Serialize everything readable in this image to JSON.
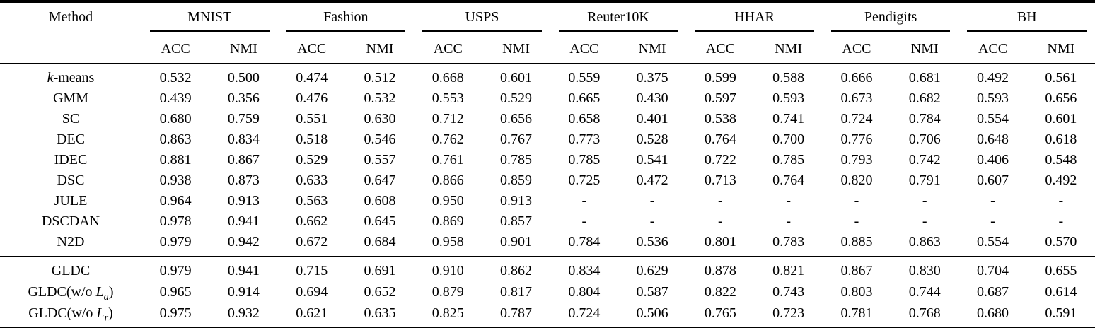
{
  "table": {
    "method_header": "Method",
    "metrics": [
      "ACC",
      "NMI"
    ],
    "datasets": [
      "MNIST",
      "Fashion",
      "USPS",
      "Reuter10K",
      "HHAR",
      "Pendigits",
      "BH"
    ],
    "groups": [
      {
        "rows": [
          {
            "method": [
              {
                "text": "k",
                "italic": true
              },
              {
                "text": "-means"
              }
            ],
            "values": [
              "0.532",
              "0.500",
              "0.474",
              "0.512",
              "0.668",
              "0.601",
              "0.559",
              "0.375",
              "0.599",
              "0.588",
              "0.666",
              "0.681",
              "0.492",
              "0.561"
            ]
          },
          {
            "method": [
              {
                "text": "GMM"
              }
            ],
            "values": [
              "0.439",
              "0.356",
              "0.476",
              "0.532",
              "0.553",
              "0.529",
              "0.665",
              "0.430",
              "0.597",
              "0.593",
              "0.673",
              "0.682",
              "0.593",
              "0.656"
            ]
          },
          {
            "method": [
              {
                "text": "SC"
              }
            ],
            "values": [
              "0.680",
              "0.759",
              "0.551",
              "0.630",
              "0.712",
              "0.656",
              "0.658",
              "0.401",
              "0.538",
              "0.741",
              "0.724",
              "0.784",
              "0.554",
              "0.601"
            ]
          },
          {
            "method": [
              {
                "text": "DEC"
              }
            ],
            "values": [
              "0.863",
              "0.834",
              "0.518",
              "0.546",
              "0.762",
              "0.767",
              "0.773",
              "0.528",
              "0.764",
              "0.700",
              "0.776",
              "0.706",
              "0.648",
              "0.618"
            ]
          },
          {
            "method": [
              {
                "text": "IDEC"
              }
            ],
            "values": [
              "0.881",
              "0.867",
              "0.529",
              "0.557",
              "0.761",
              "0.785",
              "0.785",
              "0.541",
              "0.722",
              "0.785",
              "0.793",
              "0.742",
              "0.406",
              "0.548"
            ]
          },
          {
            "method": [
              {
                "text": "DSC"
              }
            ],
            "values": [
              "0.938",
              "0.873",
              "0.633",
              "0.647",
              "0.866",
              "0.859",
              "0.725",
              "0.472",
              "0.713",
              "0.764",
              "0.820",
              "0.791",
              "0.607",
              "0.492"
            ]
          },
          {
            "method": [
              {
                "text": "JULE"
              }
            ],
            "values": [
              "0.964",
              "0.913",
              "0.563",
              "0.608",
              "0.950",
              "0.913",
              "-",
              "-",
              "-",
              "-",
              "-",
              "-",
              "-",
              "-"
            ]
          },
          {
            "method": [
              {
                "text": "DSCDAN"
              }
            ],
            "values": [
              "0.978",
              "0.941",
              "0.662",
              "0.645",
              "0.869",
              "0.857",
              "-",
              "-",
              "-",
              "-",
              "-",
              "-",
              "-",
              "-"
            ]
          },
          {
            "method": [
              {
                "text": "N2D"
              }
            ],
            "values": [
              "0.979",
              "0.942",
              "0.672",
              "0.684",
              "0.958",
              "0.901",
              "0.784",
              "0.536",
              "0.801",
              "0.783",
              "0.885",
              "0.863",
              "0.554",
              "0.570"
            ]
          }
        ]
      },
      {
        "rows": [
          {
            "method": [
              {
                "text": "GLDC"
              }
            ],
            "values": [
              "0.979",
              "0.941",
              "0.715",
              "0.691",
              "0.910",
              "0.862",
              "0.834",
              "0.629",
              "0.878",
              "0.821",
              "0.867",
              "0.830",
              "0.704",
              "0.655"
            ]
          },
          {
            "method": [
              {
                "text": "GLDC(w/o "
              },
              {
                "text": "L",
                "italic": true
              },
              {
                "text": "a",
                "italic": true,
                "sub": true
              },
              {
                "text": ")"
              }
            ],
            "values": [
              "0.965",
              "0.914",
              "0.694",
              "0.652",
              "0.879",
              "0.817",
              "0.804",
              "0.587",
              "0.822",
              "0.743",
              "0.803",
              "0.744",
              "0.687",
              "0.614"
            ]
          },
          {
            "method": [
              {
                "text": "GLDC(w/o "
              },
              {
                "text": "L",
                "italic": true
              },
              {
                "text": "r",
                "italic": true,
                "sub": true
              },
              {
                "text": ")"
              }
            ],
            "values": [
              "0.975",
              "0.932",
              "0.621",
              "0.635",
              "0.825",
              "0.787",
              "0.724",
              "0.506",
              "0.765",
              "0.723",
              "0.781",
              "0.768",
              "0.680",
              "0.591"
            ]
          }
        ]
      }
    ]
  }
}
